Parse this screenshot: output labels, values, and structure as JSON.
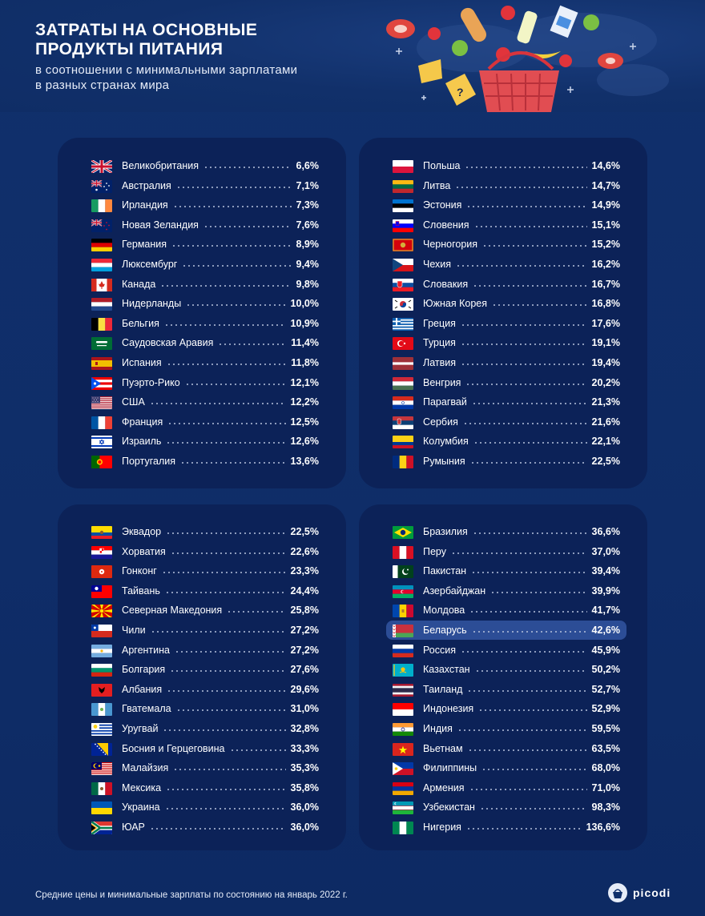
{
  "title_lines": [
    "ЗАТРАТЫ НА ОСНОВНЫЕ",
    "ПРОДУКТЫ ПИТАНИЯ"
  ],
  "subtitle_lines": [
    "в соотношении с минимальными зарплатами",
    "в разных странах мира"
  ],
  "footer": "Средние цены и минимальные зарплаты по состоянию на январь 2022 г.",
  "logo": "picodi",
  "colors": {
    "background": "#0f2f6b",
    "panel": "#0c2258",
    "highlight": "#2c4d96"
  },
  "highlighted_country": "Беларусь",
  "chart_data": {
    "type": "table",
    "columns": [
      "country",
      "value"
    ],
    "unit": "%",
    "panels": [
      {
        "rows": [
          {
            "flag": "gb",
            "country": "Великобритания",
            "value": "6,6%"
          },
          {
            "flag": "au",
            "country": "Австралия",
            "value": "7,1%"
          },
          {
            "flag": "ie",
            "country": "Ирландия",
            "value": "7,3%"
          },
          {
            "flag": "nz",
            "country": "Новая Зеландия",
            "value": "7,6%"
          },
          {
            "flag": "de",
            "country": "Германия",
            "value": "8,9%"
          },
          {
            "flag": "lu",
            "country": "Люксембург",
            "value": "9,4%"
          },
          {
            "flag": "ca",
            "country": "Канада",
            "value": "9,8%"
          },
          {
            "flag": "nl",
            "country": "Нидерланды",
            "value": "10,0%"
          },
          {
            "flag": "be",
            "country": "Бельгия",
            "value": "10,9%"
          },
          {
            "flag": "sa",
            "country": "Саудовская Аравия",
            "value": "11,4%"
          },
          {
            "flag": "es",
            "country": "Испания",
            "value": "11,8%"
          },
          {
            "flag": "pr",
            "country": "Пуэрто-Рико",
            "value": "12,1%"
          },
          {
            "flag": "us",
            "country": "США",
            "value": "12,2%"
          },
          {
            "flag": "fr",
            "country": "Франция",
            "value": "12,5%"
          },
          {
            "flag": "il",
            "country": "Израиль",
            "value": "12,6%"
          },
          {
            "flag": "pt",
            "country": "Португалия",
            "value": "13,6%"
          }
        ]
      },
      {
        "rows": [
          {
            "flag": "pl",
            "country": "Польша",
            "value": "14,6%"
          },
          {
            "flag": "lt",
            "country": "Литва",
            "value": "14,7%"
          },
          {
            "flag": "ee",
            "country": "Эстония",
            "value": "14,9%"
          },
          {
            "flag": "si",
            "country": "Словения",
            "value": "15,1%"
          },
          {
            "flag": "me",
            "country": "Черногория",
            "value": "15,2%"
          },
          {
            "flag": "cz",
            "country": "Чехия",
            "value": "16,2%"
          },
          {
            "flag": "sk",
            "country": "Словакия",
            "value": "16,7%"
          },
          {
            "flag": "kr",
            "country": "Южная Корея",
            "value": "16,8%"
          },
          {
            "flag": "gr",
            "country": "Греция",
            "value": "17,6%"
          },
          {
            "flag": "tr",
            "country": "Турция",
            "value": "19,1%"
          },
          {
            "flag": "lv",
            "country": "Латвия",
            "value": "19,4%"
          },
          {
            "flag": "hu",
            "country": "Венгрия",
            "value": "20,2%"
          },
          {
            "flag": "py",
            "country": "Парагвай",
            "value": "21,3%"
          },
          {
            "flag": "rs",
            "country": "Сербия",
            "value": "21,6%"
          },
          {
            "flag": "co",
            "country": "Колумбия",
            "value": "22,1%"
          },
          {
            "flag": "ro",
            "country": "Румыния",
            "value": "22,5%"
          }
        ]
      },
      {
        "rows": [
          {
            "flag": "ec",
            "country": "Эквадор",
            "value": "22,5%"
          },
          {
            "flag": "hr",
            "country": "Хорватия",
            "value": "22,6%"
          },
          {
            "flag": "hk",
            "country": "Гонконг",
            "value": "23,3%"
          },
          {
            "flag": "tw",
            "country": "Тайвань",
            "value": "24,4%"
          },
          {
            "flag": "mk",
            "country": "Северная Македония",
            "value": "25,8%"
          },
          {
            "flag": "cl",
            "country": "Чили",
            "value": "27,2%"
          },
          {
            "flag": "ar",
            "country": "Аргентина",
            "value": "27,2%"
          },
          {
            "flag": "bg",
            "country": "Болгария",
            "value": "27,6%"
          },
          {
            "flag": "al",
            "country": "Албания",
            "value": "29,6%"
          },
          {
            "flag": "gt",
            "country": "Гватемала",
            "value": "31,0%"
          },
          {
            "flag": "uy",
            "country": "Уругвай",
            "value": "32,8%"
          },
          {
            "flag": "ba",
            "country": "Босния и Герцеговина",
            "value": "33,3%"
          },
          {
            "flag": "my",
            "country": "Малайзия",
            "value": "35,3%"
          },
          {
            "flag": "mx",
            "country": "Мексика",
            "value": "35,8%"
          },
          {
            "flag": "ua",
            "country": "Украина",
            "value": "36,0%"
          },
          {
            "flag": "za",
            "country": "ЮАР",
            "value": "36,0%"
          }
        ]
      },
      {
        "rows": [
          {
            "flag": "br",
            "country": "Бразилия",
            "value": "36,6%"
          },
          {
            "flag": "pe",
            "country": "Перу",
            "value": "37,0%"
          },
          {
            "flag": "pk",
            "country": "Пакистан",
            "value": "39,4%"
          },
          {
            "flag": "az",
            "country": "Азербайджан",
            "value": "39,9%"
          },
          {
            "flag": "md",
            "country": "Молдова",
            "value": "41,7%"
          },
          {
            "flag": "by",
            "country": "Беларусь",
            "value": "42,6%"
          },
          {
            "flag": "ru",
            "country": "Россия",
            "value": "45,9%"
          },
          {
            "flag": "kz",
            "country": "Казахстан",
            "value": "50,2%"
          },
          {
            "flag": "th",
            "country": "Таиланд",
            "value": "52,7%"
          },
          {
            "flag": "id",
            "country": "Индонезия",
            "value": "52,9%"
          },
          {
            "flag": "in",
            "country": "Индия",
            "value": "59,5%"
          },
          {
            "flag": "vn",
            "country": "Вьетнам",
            "value": "63,5%"
          },
          {
            "flag": "ph",
            "country": "Филиппины",
            "value": "68,0%"
          },
          {
            "flag": "am",
            "country": "Армения",
            "value": "71,0%"
          },
          {
            "flag": "uz",
            "country": "Узбекистан",
            "value": "98,3%"
          },
          {
            "flag": "ng",
            "country": "Нигерия",
            "value": "136,6%"
          }
        ]
      }
    ]
  }
}
